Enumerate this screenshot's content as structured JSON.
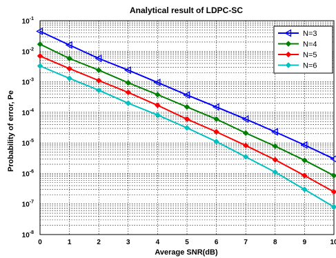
{
  "chart_data": {
    "type": "line",
    "title": "Analytical result of LDPC-SC",
    "xlabel": "Average SNR(dB)",
    "ylabel": "Probability of error, Pe",
    "xlim": [
      0,
      10
    ],
    "ylim": [
      1e-08,
      0.1
    ],
    "yscale": "log",
    "grid": true,
    "legend_position": "top-right",
    "x": [
      0,
      1,
      2,
      3,
      4,
      5,
      6,
      7,
      8,
      9,
      10
    ],
    "x_tick_labels": [
      "0",
      "1",
      "2",
      "3",
      "4",
      "5",
      "6",
      "7",
      "8",
      "9",
      "10"
    ],
    "y_ticks": [
      {
        "base": "10",
        "exp": "-8"
      },
      {
        "base": "10",
        "exp": "-7"
      },
      {
        "base": "10",
        "exp": "-6"
      },
      {
        "base": "10",
        "exp": "-5"
      },
      {
        "base": "10",
        "exp": "-4"
      },
      {
        "base": "10",
        "exp": "-3"
      },
      {
        "base": "10",
        "exp": "-2"
      },
      {
        "base": "10",
        "exp": "-1"
      }
    ],
    "series": [
      {
        "name": "N=3",
        "color": "#0000ff",
        "marker": "triangle-left",
        "values": [
          0.045,
          0.016,
          0.0058,
          0.0024,
          0.00095,
          0.00037,
          0.00015,
          6e-05,
          2.3e-05,
          8.5e-06,
          3e-06
        ]
      },
      {
        "name": "N=4",
        "color": "#008000",
        "marker": "diamond",
        "values": [
          0.017,
          0.0058,
          0.0024,
          0.00093,
          0.00038,
          0.00015,
          6e-05,
          2.1e-05,
          7.8e-06,
          2.7e-06,
          8.5e-07
        ]
      },
      {
        "name": "N=5",
        "color": "#ff0000",
        "marker": "diamond",
        "values": [
          0.007,
          0.0027,
          0.0011,
          0.00045,
          0.00017,
          6e-05,
          2.3e-05,
          8.2e-06,
          2.8e-06,
          8.5e-07,
          2.5e-07
        ]
      },
      {
        "name": "N=6",
        "color": "#00c0c0",
        "marker": "diamond",
        "values": [
          0.0033,
          0.0013,
          0.00053,
          0.0002,
          8.2e-05,
          3.1e-05,
          1.1e-05,
          3.5e-06,
          1.1e-06,
          3e-07,
          8e-08
        ]
      }
    ]
  }
}
